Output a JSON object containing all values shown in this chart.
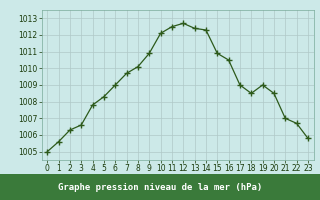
{
  "x": [
    0,
    1,
    2,
    3,
    4,
    5,
    6,
    7,
    8,
    9,
    10,
    11,
    12,
    13,
    14,
    15,
    16,
    17,
    18,
    19,
    20,
    21,
    22,
    23
  ],
  "y": [
    1005.0,
    1005.6,
    1006.3,
    1006.6,
    1007.8,
    1008.3,
    1009.0,
    1009.7,
    1010.1,
    1010.9,
    1012.1,
    1012.5,
    1012.7,
    1012.4,
    1012.3,
    1010.9,
    1010.5,
    1009.0,
    1008.5,
    1009.0,
    1008.5,
    1007.0,
    1006.7,
    1005.8
  ],
  "line_color": "#2d5a1b",
  "marker": "+",
  "marker_size": 4,
  "marker_linewidth": 1.0,
  "line_width": 0.9,
  "bg_color": "#cce9e8",
  "grid_color": "#b0c8c8",
  "xlabel": "Graphe pression niveau de la mer (hPa)",
  "xlabel_color": "white",
  "xlabel_bg": "#3a7a3a",
  "ylim": [
    1004.5,
    1013.5
  ],
  "xlim": [
    -0.5,
    23.5
  ],
  "yticks": [
    1005,
    1006,
    1007,
    1008,
    1009,
    1010,
    1011,
    1012,
    1013
  ],
  "xticks": [
    0,
    1,
    2,
    3,
    4,
    5,
    6,
    7,
    8,
    9,
    10,
    11,
    12,
    13,
    14,
    15,
    16,
    17,
    18,
    19,
    20,
    21,
    22,
    23
  ],
  "tick_color": "#1a3a0a",
  "tick_fontsize": 5.5,
  "xlabel_fontsize": 6.5,
  "spine_color": "#7aaa9a"
}
